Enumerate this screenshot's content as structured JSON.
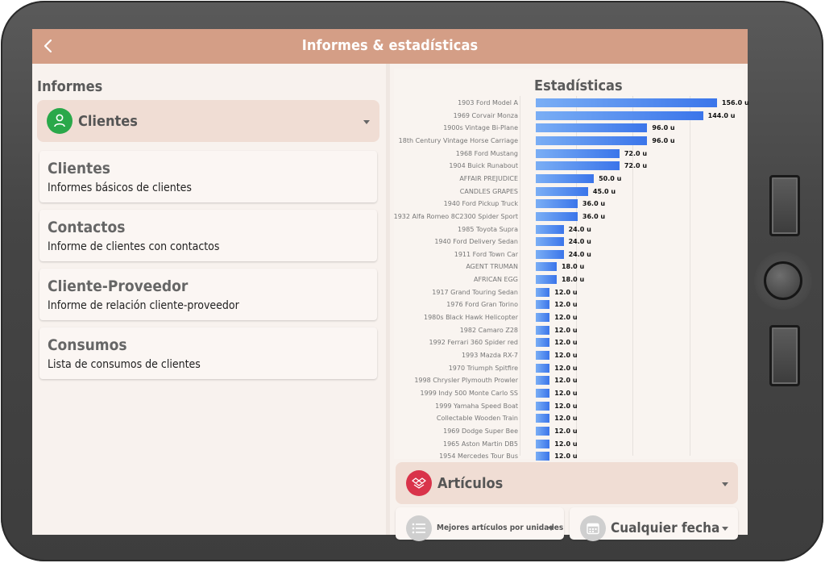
{
  "header": {
    "title": "Informes & estadísticas"
  },
  "left": {
    "section_title": "Informes",
    "selector": {
      "label": "Clientes"
    },
    "cards": [
      {
        "title": "Clientes",
        "subtitle": "Informes básicos de clientes"
      },
      {
        "title": "Contactos",
        "subtitle": "Informe de clientes con contactos"
      },
      {
        "title": "Cliente-Proveedor",
        "subtitle": "Informe de relación cliente-proveedor"
      },
      {
        "title": "Consumos",
        "subtitle": "Lista de consumos de clientes"
      }
    ]
  },
  "right": {
    "section_title": "Estadísticas",
    "category_selector": {
      "label": "Artículos"
    },
    "filter_metric": {
      "label": "Mejores artículos por unidades"
    },
    "filter_date": {
      "label": "Cualquier fecha"
    }
  },
  "chart_data": {
    "type": "bar",
    "orientation": "horizontal",
    "unit_suffix": " u",
    "xlim": [
      0,
      172
    ],
    "grid": true,
    "colors": {
      "bar_start": "#7aaef5",
      "bar_end": "#3b75ea"
    },
    "categories": [
      "1903 Ford Model A",
      "1969 Corvair Monza",
      "1900s Vintage Bi-Plane",
      "18th Century Vintage Horse Carriage",
      "1968 Ford Mustang",
      "1904 Buick Runabout",
      "AFFAIR PREJUDICE",
      "CANDLES GRAPES",
      "1940 Ford Pickup Truck",
      "1932 Alfa Romeo 8C2300 Spider Sport",
      "1985 Toyota Supra",
      "1940 Ford Delivery Sedan",
      "1911 Ford Town Car",
      "AGENT TRUMAN",
      "AFRICAN EGG",
      "1917 Grand Touring Sedan",
      "1976 Ford Gran Torino",
      "1980s Black Hawk Helicopter",
      "1982 Camaro Z28",
      "1992 Ferrari 360 Spider red",
      "1993 Mazda RX-7",
      "1970 Triumph Spitfire",
      "1998 Chrysler Plymouth Prowler",
      "1999 Indy 500 Monte Carlo SS",
      "1999 Yamaha Speed Boat",
      "Collectable Wooden Train",
      "1969 Dodge Super Bee",
      "1965 Aston Martin DB5",
      "1954 Mercedes Tour Bus"
    ],
    "values": [
      156.0,
      144.0,
      96.0,
      96.0,
      72.0,
      72.0,
      50.0,
      45.0,
      36.0,
      36.0,
      24.0,
      24.0,
      24.0,
      18.0,
      18.0,
      12.0,
      12.0,
      12.0,
      12.0,
      12.0,
      12.0,
      12.0,
      12.0,
      12.0,
      12.0,
      12.0,
      12.0,
      12.0,
      12.0
    ],
    "value_labels": [
      "156.0 u",
      "144.0 u",
      "96.0 u",
      "96.0 u",
      "72.0 u",
      "72.0 u",
      "50.0 u",
      "45.0 u",
      "36.0 u",
      "36.0 u",
      "24.0 u",
      "24.0 u",
      "24.0 u",
      "18.0 u",
      "18.0 u",
      "12.0 u",
      "12.0 u",
      "12.0 u",
      "12.0 u",
      "12.0 u",
      "12.0 u",
      "12.0 u",
      "12.0 u",
      "12.0 u",
      "12.0 u",
      "12.0 u",
      "12.0 u",
      "12.0 u",
      "12.0 u"
    ]
  }
}
